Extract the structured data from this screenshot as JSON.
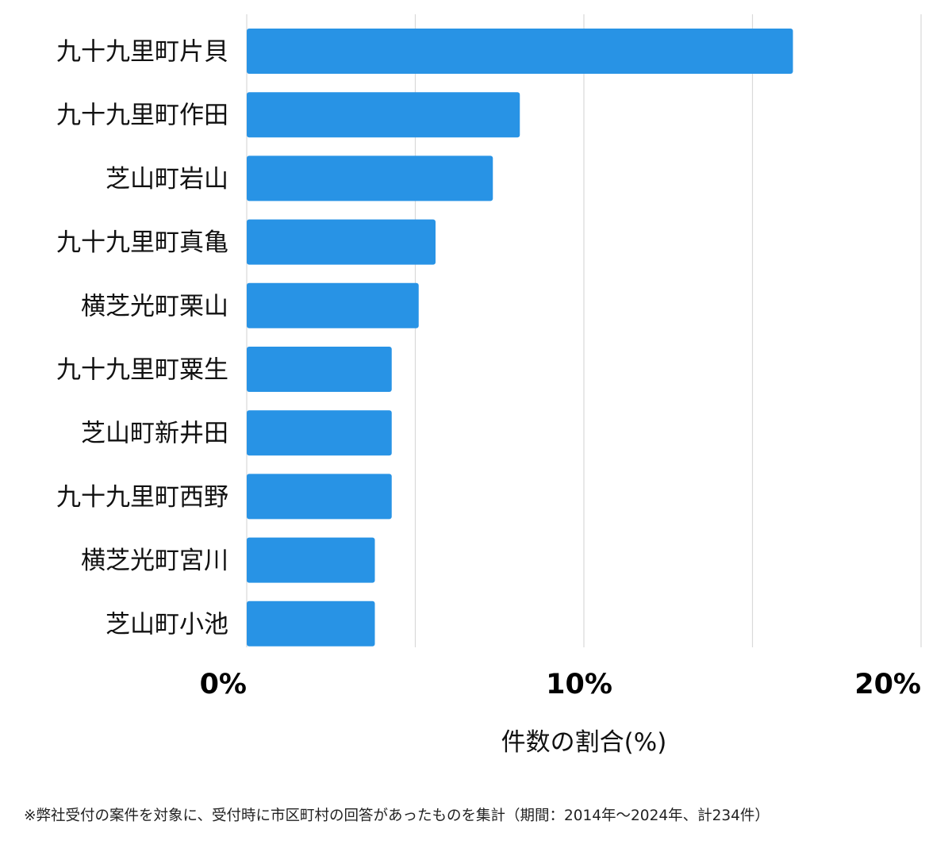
{
  "chart_data": {
    "type": "bar",
    "orientation": "horizontal",
    "categories": [
      "九十九里町片貝",
      "九十九里町作田",
      "芝山町岩山",
      "九十九里町真亀",
      "横芝光町栗山",
      "九十九里町粟生",
      "芝山町新井田",
      "九十九里町西野",
      "横芝光町宮川",
      "芝山町小池"
    ],
    "values": [
      16.2,
      8.1,
      7.3,
      5.6,
      5.1,
      4.3,
      4.3,
      4.3,
      3.8,
      3.8
    ],
    "xlim": [
      0,
      20
    ],
    "x_ticks": [
      0,
      10,
      20
    ],
    "x_tick_labels": [
      "0%",
      "10%",
      "20%"
    ],
    "xlabel": "件数の割合(%)",
    "gridlines": [
      0,
      5,
      10,
      15,
      20
    ],
    "grid": true,
    "bar_color": "#2893e5",
    "grid_color": "#d9d9d9"
  },
  "footnote": "※弊社受付の案件を対象に、受付時に市区町村の回答があったものを集計（期間：2014年～2024年、計234件）"
}
